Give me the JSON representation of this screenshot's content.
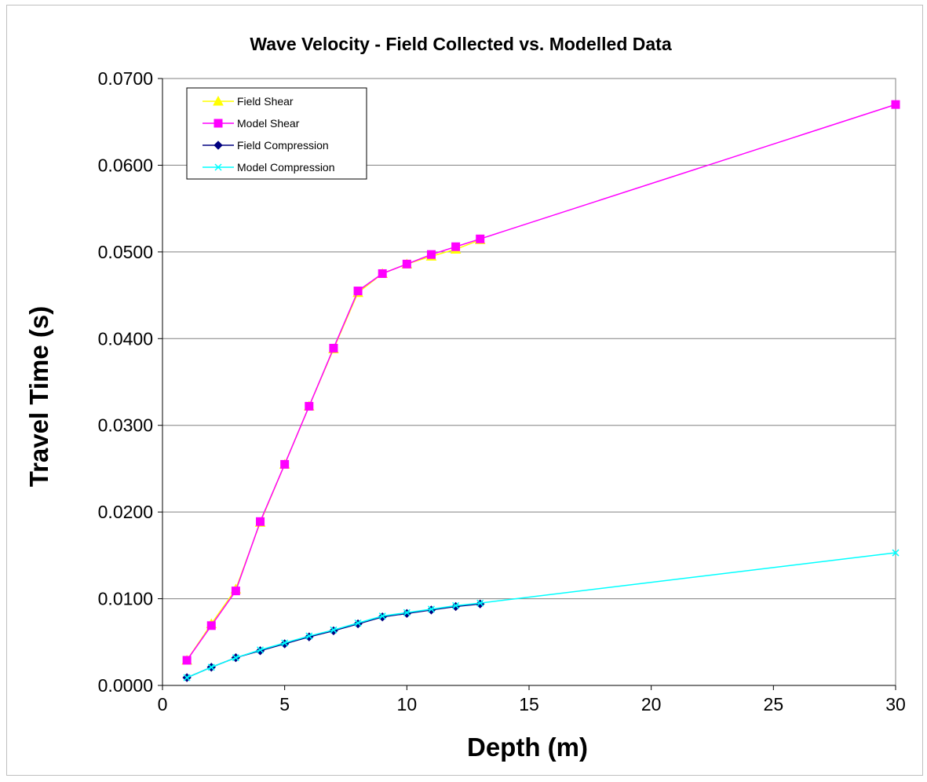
{
  "chart_data": {
    "type": "line",
    "title": "Wave Velocity - Field Collected vs. Modelled Data",
    "xlabel": "Depth (m)",
    "ylabel": "Travel Time (s)",
    "xlim": [
      0,
      30
    ],
    "ylim": [
      0,
      0.07
    ],
    "x_ticks": [
      0,
      5,
      10,
      15,
      20,
      25,
      30
    ],
    "y_ticks": [
      0,
      0.01,
      0.02,
      0.03,
      0.04,
      0.05,
      0.06,
      0.07
    ],
    "x_tick_labels": [
      "0",
      "5",
      "10",
      "15",
      "20",
      "25",
      "30"
    ],
    "y_tick_labels": [
      "0.0000",
      "0.0100",
      "0.0200",
      "0.0300",
      "0.0400",
      "0.0500",
      "0.0600",
      "0.0700"
    ],
    "grid": "horizontal",
    "legend_position": "top-left",
    "series": [
      {
        "name": "Field Shear",
        "color": "#ffff00",
        "marker": "triangle",
        "x": [
          1,
          2,
          3,
          4,
          5,
          6,
          7,
          8,
          9,
          10,
          11,
          12,
          13
        ],
        "y": [
          0.0029,
          0.0071,
          0.0111,
          0.0188,
          0.0255,
          0.0322,
          0.0388,
          0.0453,
          0.0475,
          0.0486,
          0.0495,
          0.0503,
          0.0514
        ]
      },
      {
        "name": "Model Shear",
        "color": "#ff00ff",
        "marker": "square",
        "x": [
          1,
          2,
          3,
          4,
          5,
          6,
          7,
          8,
          9,
          10,
          11,
          12,
          13,
          30
        ],
        "y": [
          0.0029,
          0.0069,
          0.0109,
          0.0189,
          0.0255,
          0.0322,
          0.0389,
          0.0455,
          0.0475,
          0.0486,
          0.0497,
          0.0506,
          0.0515,
          0.067
        ]
      },
      {
        "name": "Field Compression",
        "color": "#000080",
        "marker": "diamond",
        "x": [
          1,
          2,
          3,
          4,
          5,
          6,
          7,
          8,
          9,
          10,
          11,
          12,
          13
        ],
        "y": [
          0.0009,
          0.0021,
          0.0032,
          0.004,
          0.0048,
          0.0056,
          0.0063,
          0.0071,
          0.0079,
          0.0083,
          0.0087,
          0.0091,
          0.0094
        ]
      },
      {
        "name": "Model Compression",
        "color": "#00ffff",
        "marker": "x",
        "x": [
          1,
          2,
          3,
          4,
          5,
          6,
          7,
          8,
          9,
          10,
          11,
          12,
          13,
          30
        ],
        "y": [
          0.0009,
          0.0021,
          0.0032,
          0.0041,
          0.0049,
          0.0057,
          0.0064,
          0.0072,
          0.008,
          0.0084,
          0.0088,
          0.0092,
          0.0095,
          0.0153
        ]
      }
    ]
  }
}
